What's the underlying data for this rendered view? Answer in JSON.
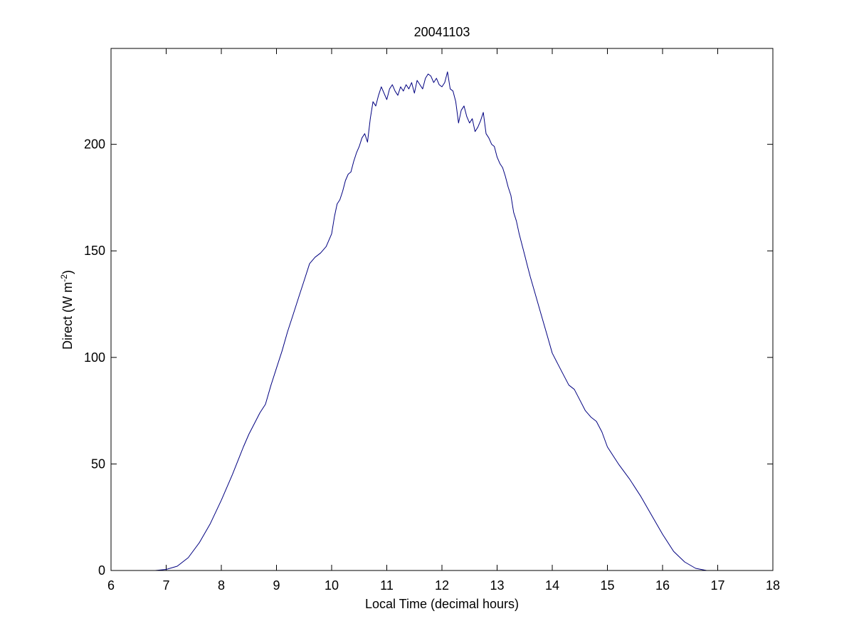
{
  "chart_data": {
    "type": "line",
    "title": "20041103",
    "xlabel": "Local Time (decimal hours)",
    "ylabel": {
      "base": "Direct (W m",
      "sup": "-2",
      "close": ")"
    },
    "xlim": [
      6,
      18
    ],
    "ylim": [
      0,
      245
    ],
    "xticks": [
      6,
      7,
      8,
      9,
      10,
      11,
      12,
      13,
      14,
      15,
      16,
      17,
      18
    ],
    "yticks": [
      0,
      50,
      100,
      150,
      200
    ],
    "grid": false,
    "line_color": "#000080",
    "series": [
      {
        "x": [
          6.8,
          7.0,
          7.2,
          7.4,
          7.6,
          7.8,
          8.0,
          8.2,
          8.4,
          8.5,
          8.6,
          8.7,
          8.8,
          8.9,
          9.0,
          9.1,
          9.2,
          9.3,
          9.4,
          9.5,
          9.6,
          9.7,
          9.8,
          9.9,
          10.0,
          10.05,
          10.1,
          10.15,
          10.2,
          10.25,
          10.3,
          10.35,
          10.4,
          10.45,
          10.5,
          10.55,
          10.6,
          10.65,
          10.7,
          10.75,
          10.8,
          10.85,
          10.9,
          10.95,
          11.0,
          11.05,
          11.1,
          11.15,
          11.2,
          11.25,
          11.3,
          11.35,
          11.4,
          11.45,
          11.5,
          11.55,
          11.6,
          11.65,
          11.7,
          11.75,
          11.8,
          11.85,
          11.9,
          11.95,
          12.0,
          12.05,
          12.1,
          12.15,
          12.2,
          12.25,
          12.3,
          12.35,
          12.4,
          12.45,
          12.5,
          12.55,
          12.6,
          12.65,
          12.7,
          12.75,
          12.8,
          12.85,
          12.9,
          12.95,
          13.0,
          13.05,
          13.1,
          13.15,
          13.2,
          13.25,
          13.3,
          13.35,
          13.4,
          13.45,
          13.5,
          13.55,
          13.6,
          13.7,
          13.8,
          13.9,
          14.0,
          14.1,
          14.2,
          14.3,
          14.4,
          14.5,
          14.6,
          14.7,
          14.8,
          14.9,
          15.0,
          15.2,
          15.4,
          15.6,
          15.8,
          16.0,
          16.2,
          16.4,
          16.6,
          16.8,
          16.9
        ],
        "y": [
          0,
          0.5,
          2,
          6,
          13,
          22,
          33,
          45,
          58,
          64,
          69,
          74,
          78,
          87,
          95,
          103,
          112,
          120,
          128,
          136,
          144,
          147,
          149,
          152,
          158,
          166,
          172,
          174,
          178,
          183,
          186,
          187,
          192,
          196,
          199,
          203,
          205,
          201,
          212,
          220,
          218,
          223,
          227,
          224,
          221,
          226,
          228,
          225,
          223,
          227,
          225,
          228,
          226,
          229,
          224,
          230,
          228,
          226,
          231,
          233,
          232,
          229,
          231,
          228,
          227,
          229,
          234,
          226,
          225,
          220,
          210,
          216,
          218,
          213,
          210,
          212,
          206,
          208,
          211,
          215,
          205,
          203,
          200,
          199,
          194,
          191,
          189,
          185,
          180,
          176,
          168,
          164,
          158,
          153,
          148,
          143,
          138,
          129,
          120,
          111,
          102,
          97,
          92,
          87,
          85,
          80,
          75,
          72,
          70,
          65,
          58,
          50,
          43,
          35,
          26,
          17,
          9,
          4,
          1,
          0,
          0
        ]
      }
    ]
  }
}
